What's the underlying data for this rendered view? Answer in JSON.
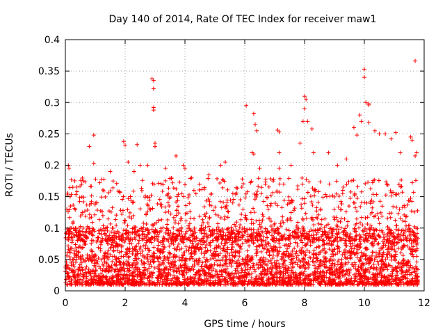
{
  "chart_data": {
    "type": "scatter",
    "title": "Day 140 of 2014, Rate Of TEC Index for receiver maw1",
    "xlabel": "GPS time / hours",
    "ylabel": "ROTI / TECUs",
    "xlim": [
      0,
      12
    ],
    "ylim": [
      0,
      0.4
    ],
    "x_ticks": [
      0,
      2,
      4,
      6,
      8,
      10,
      12
    ],
    "x_tick_labels": [
      "0",
      "2",
      "4",
      "6",
      "8",
      "10",
      "12"
    ],
    "y_ticks": [
      0,
      0.05,
      0.1,
      0.15,
      0.2,
      0.25,
      0.3,
      0.35,
      0.4
    ],
    "y_tick_labels": [
      "0",
      "0.05",
      "0.1",
      "0.15",
      "0.2",
      "0.25",
      "0.3",
      "0.35",
      "0.4"
    ],
    "grid": true,
    "marker": "+",
    "series": [
      {
        "name": "ROTI",
        "color": "#ff0000",
        "x_range": [
          0,
          11.8
        ],
        "bulk_range": [
          0.01,
          0.1
        ],
        "outliers": [
          [
            0.05,
            0.13
          ],
          [
            0.1,
            0.2
          ],
          [
            0.12,
            0.195
          ],
          [
            0.25,
            0.165
          ],
          [
            0.55,
            0.17
          ],
          [
            0.8,
            0.23
          ],
          [
            0.95,
            0.248
          ],
          [
            0.95,
            0.203
          ],
          [
            1.05,
            0.14
          ],
          [
            1.5,
            0.19
          ],
          [
            1.6,
            0.175
          ],
          [
            1.95,
            0.238
          ],
          [
            2.0,
            0.232
          ],
          [
            2.1,
            0.205
          ],
          [
            2.3,
            0.19
          ],
          [
            2.4,
            0.233
          ],
          [
            2.5,
            0.2
          ],
          [
            2.75,
            0.2
          ],
          [
            2.9,
            0.338
          ],
          [
            2.95,
            0.335
          ],
          [
            2.95,
            0.322
          ],
          [
            2.95,
            0.292
          ],
          [
            2.95,
            0.288
          ],
          [
            3.0,
            0.235
          ],
          [
            3.0,
            0.23
          ],
          [
            3.35,
            0.195
          ],
          [
            3.7,
            0.215
          ],
          [
            3.95,
            0.2
          ],
          [
            4.0,
            0.195
          ],
          [
            4.3,
            0.16
          ],
          [
            4.8,
            0.185
          ],
          [
            5.2,
            0.2
          ],
          [
            5.35,
            0.205
          ],
          [
            5.6,
            0.14
          ],
          [
            6.05,
            0.295
          ],
          [
            6.3,
            0.282
          ],
          [
            6.35,
            0.265
          ],
          [
            6.4,
            0.255
          ],
          [
            6.25,
            0.22
          ],
          [
            6.3,
            0.218
          ],
          [
            6.5,
            0.195
          ],
          [
            6.7,
            0.178
          ],
          [
            6.95,
            0.175
          ],
          [
            7.1,
            0.256
          ],
          [
            7.15,
            0.253
          ],
          [
            7.15,
            0.22
          ],
          [
            7.15,
            0.195
          ],
          [
            7.3,
            0.17
          ],
          [
            7.55,
            0.2
          ],
          [
            7.85,
            0.235
          ],
          [
            7.95,
            0.27
          ],
          [
            8.0,
            0.31
          ],
          [
            8.05,
            0.305
          ],
          [
            8.0,
            0.29
          ],
          [
            8.1,
            0.27
          ],
          [
            8.25,
            0.258
          ],
          [
            8.3,
            0.22
          ],
          [
            8.8,
            0.22
          ],
          [
            9.1,
            0.2
          ],
          [
            9.4,
            0.21
          ],
          [
            9.65,
            0.26
          ],
          [
            9.75,
            0.248
          ],
          [
            9.85,
            0.28
          ],
          [
            9.9,
            0.27
          ],
          [
            10.0,
            0.353
          ],
          [
            10.0,
            0.34
          ],
          [
            10.05,
            0.3
          ],
          [
            10.15,
            0.298
          ],
          [
            10.15,
            0.296
          ],
          [
            10.15,
            0.268
          ],
          [
            10.35,
            0.255
          ],
          [
            10.5,
            0.25
          ],
          [
            10.7,
            0.25
          ],
          [
            10.9,
            0.242
          ],
          [
            11.05,
            0.252
          ],
          [
            11.2,
            0.22
          ],
          [
            11.55,
            0.245
          ],
          [
            11.6,
            0.24
          ],
          [
            11.7,
            0.366
          ],
          [
            11.75,
            0.22
          ],
          [
            11.7,
            0.215
          ]
        ]
      }
    ]
  }
}
